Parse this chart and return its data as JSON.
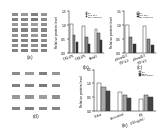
{
  "figure_bg": "#ffffff",
  "gel_a": {
    "n_rows": 8,
    "n_lanes": 4,
    "bg_color": "#d8d8d8",
    "band_color": "#707070",
    "label": "(a)"
  },
  "gel_d": {
    "n_rows": 4,
    "n_lanes": 4,
    "bg_color": "#d8d8d8",
    "band_color": "#707070",
    "label": "(d)"
  },
  "panel_b": {
    "groups": [
      "TLR2-LPS",
      "TLR4-LPS",
      "Smad3"
    ],
    "series": [
      {
        "label": "Ctrl",
        "color": "#ffffff",
        "edgecolor": "#333333",
        "values": [
          1.05,
          0.95,
          0.85
        ]
      },
      {
        "label": "LPS 250",
        "color": "#888888",
        "edgecolor": "#333333",
        "values": [
          0.65,
          0.55,
          0.7
        ]
      },
      {
        "label": "TGF-combine",
        "color": "#333333",
        "edgecolor": "#333333",
        "values": [
          0.4,
          0.3,
          0.45
        ]
      }
    ],
    "ylim": [
      0,
      1.5
    ],
    "yticks": [
      0,
      0.5,
      1.0,
      1.5
    ],
    "ylabel": "Relative protein level",
    "label": "(b)"
  },
  "panel_c": {
    "groups": [
      "p-Smad2/3\n(TGF-b1)",
      "p-Smad2/3\n(TGF-b1)"
    ],
    "series": [
      {
        "label": "Ctrl",
        "color": "#ffffff",
        "edgecolor": "#333333",
        "values": [
          1.0,
          0.95
        ]
      },
      {
        "label": "LPS 250",
        "color": "#888888",
        "edgecolor": "#333333",
        "values": [
          0.55,
          0.5
        ]
      },
      {
        "label": "TGF-combine",
        "color": "#333333",
        "edgecolor": "#333333",
        "values": [
          0.3,
          0.28
        ]
      }
    ],
    "ylim": [
      0,
      1.5
    ],
    "yticks": [
      0,
      0.5,
      1.0,
      1.5
    ],
    "ylabel": "Relative protein level",
    "label": "(c)"
  },
  "panel_e": {
    "groups": [
      "Ct-dox",
      "dox-treated",
      "LPS\n(250 ug/mL)"
    ],
    "series": [
      {
        "label": "Ctrl",
        "color": "#ffffff",
        "edgecolor": "#333333",
        "values": [
          1.0,
          0.7,
          0.45
        ]
      },
      {
        "label": "MK2i",
        "color": "#aaaaaa",
        "edgecolor": "#333333",
        "values": [
          0.88,
          0.58,
          0.6
        ]
      },
      {
        "label": "Ctrl+siRNA",
        "color": "#444444",
        "edgecolor": "#333333",
        "values": [
          0.72,
          0.48,
          0.52
        ]
      }
    ],
    "ylim": [
      0,
      1.5
    ],
    "yticks": [
      0,
      0.5,
      1.0,
      1.5
    ],
    "ylabel": "Relative protein level",
    "label": "(e)"
  }
}
